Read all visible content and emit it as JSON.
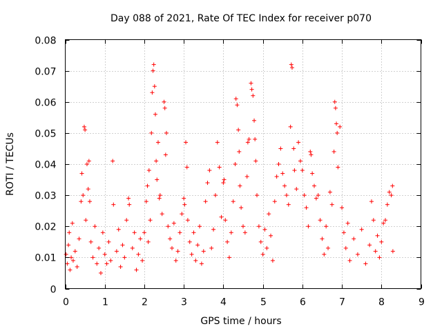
{
  "chart_data": {
    "type": "scatter",
    "title": "Day 088 of 2021, Rate Of TEC Index for receiver p070",
    "xlabel": "GPS time / hours",
    "ylabel": "ROTI / TECUs",
    "xlim": [
      0,
      9
    ],
    "ylim": [
      0,
      0.08
    ],
    "grid": true,
    "marker": "+",
    "color": "#ff0000",
    "x_ticks": [
      {
        "v": 0,
        "label": "0"
      },
      {
        "v": 1,
        "label": "1"
      },
      {
        "v": 2,
        "label": "2"
      },
      {
        "v": 3,
        "label": "3"
      },
      {
        "v": 4,
        "label": "4"
      },
      {
        "v": 5,
        "label": "5"
      },
      {
        "v": 6,
        "label": "6"
      },
      {
        "v": 7,
        "label": "7"
      },
      {
        "v": 8,
        "label": "8"
      },
      {
        "v": 9,
        "label": "9"
      }
    ],
    "y_ticks": [
      {
        "v": 0,
        "label": "0"
      },
      {
        "v": 0.01,
        "label": "0.01"
      },
      {
        "v": 0.02,
        "label": "0.02"
      },
      {
        "v": 0.03,
        "label": "0.03"
      },
      {
        "v": 0.04,
        "label": "0.04"
      },
      {
        "v": 0.05,
        "label": "0.05"
      },
      {
        "v": 0.06,
        "label": "0.06"
      },
      {
        "v": 0.07,
        "label": "0.07"
      },
      {
        "v": 0.08,
        "label": "0.08"
      }
    ],
    "points": [
      [
        0.02,
        0.011
      ],
      [
        0.05,
        0.008
      ],
      [
        0.08,
        0.014
      ],
      [
        0.1,
        0.018
      ],
      [
        0.12,
        0.006
      ],
      [
        0.15,
        0.01
      ],
      [
        0.18,
        0.021
      ],
      [
        0.2,
        0.009
      ],
      [
        0.25,
        0.012
      ],
      [
        0.3,
        0.007
      ],
      [
        0.35,
        0.016
      ],
      [
        0.4,
        0.028
      ],
      [
        0.42,
        0.037
      ],
      [
        0.45,
        0.03
      ],
      [
        0.48,
        0.052
      ],
      [
        0.5,
        0.051
      ],
      [
        0.52,
        0.022
      ],
      [
        0.55,
        0.04
      ],
      [
        0.58,
        0.032
      ],
      [
        0.6,
        0.041
      ],
      [
        0.62,
        0.028
      ],
      [
        0.65,
        0.015
      ],
      [
        0.7,
        0.01
      ],
      [
        0.75,
        0.02
      ],
      [
        0.8,
        0.008
      ],
      [
        0.85,
        0.013
      ],
      [
        0.9,
        0.005
      ],
      [
        0.95,
        0.018
      ],
      [
        1.0,
        0.011
      ],
      [
        1.05,
        0.008
      ],
      [
        1.1,
        0.015
      ],
      [
        1.15,
        0.009
      ],
      [
        1.2,
        0.041
      ],
      [
        1.22,
        0.027
      ],
      [
        1.3,
        0.012
      ],
      [
        1.35,
        0.019
      ],
      [
        1.4,
        0.007
      ],
      [
        1.45,
        0.014
      ],
      [
        1.5,
        0.01
      ],
      [
        1.55,
        0.022
      ],
      [
        1.6,
        0.029
      ],
      [
        1.62,
        0.027
      ],
      [
        1.7,
        0.013
      ],
      [
        1.75,
        0.018
      ],
      [
        1.8,
        0.006
      ],
      [
        1.85,
        0.011
      ],
      [
        1.9,
        0.016
      ],
      [
        1.95,
        0.009
      ],
      [
        2.0,
        0.018
      ],
      [
        2.05,
        0.028
      ],
      [
        2.08,
        0.033
      ],
      [
        2.1,
        0.015
      ],
      [
        2.12,
        0.038
      ],
      [
        2.15,
        0.022
      ],
      [
        2.18,
        0.05
      ],
      [
        2.2,
        0.063
      ],
      [
        2.22,
        0.07
      ],
      [
        2.24,
        0.072
      ],
      [
        2.26,
        0.065
      ],
      [
        2.28,
        0.056
      ],
      [
        2.3,
        0.041
      ],
      [
        2.32,
        0.035
      ],
      [
        2.35,
        0.047
      ],
      [
        2.38,
        0.029
      ],
      [
        2.4,
        0.03
      ],
      [
        2.45,
        0.024
      ],
      [
        2.5,
        0.06
      ],
      [
        2.52,
        0.058
      ],
      [
        2.54,
        0.043
      ],
      [
        2.56,
        0.05
      ],
      [
        2.6,
        0.02
      ],
      [
        2.65,
        0.016
      ],
      [
        2.7,
        0.013
      ],
      [
        2.75,
        0.021
      ],
      [
        2.8,
        0.009
      ],
      [
        2.85,
        0.012
      ],
      [
        2.9,
        0.018
      ],
      [
        2.95,
        0.024
      ],
      [
        3.0,
        0.029
      ],
      [
        3.02,
        0.027
      ],
      [
        3.05,
        0.047
      ],
      [
        3.08,
        0.039
      ],
      [
        3.1,
        0.022
      ],
      [
        3.15,
        0.015
      ],
      [
        3.2,
        0.011
      ],
      [
        3.25,
        0.018
      ],
      [
        3.3,
        0.009
      ],
      [
        3.35,
        0.014
      ],
      [
        3.4,
        0.02
      ],
      [
        3.45,
        0.008
      ],
      [
        3.5,
        0.012
      ],
      [
        3.55,
        0.028
      ],
      [
        3.6,
        0.034
      ],
      [
        3.65,
        0.038
      ],
      [
        3.7,
        0.013
      ],
      [
        3.75,
        0.019
      ],
      [
        3.8,
        0.03
      ],
      [
        3.85,
        0.047
      ],
      [
        3.9,
        0.039
      ],
      [
        3.95,
        0.023
      ],
      [
        4.0,
        0.034
      ],
      [
        4.02,
        0.035
      ],
      [
        4.05,
        0.022
      ],
      [
        4.1,
        0.015
      ],
      [
        4.15,
        0.01
      ],
      [
        4.2,
        0.018
      ],
      [
        4.25,
        0.028
      ],
      [
        4.3,
        0.04
      ],
      [
        4.32,
        0.061
      ],
      [
        4.35,
        0.059
      ],
      [
        4.38,
        0.051
      ],
      [
        4.4,
        0.044
      ],
      [
        4.42,
        0.033
      ],
      [
        4.45,
        0.026
      ],
      [
        4.5,
        0.02
      ],
      [
        4.55,
        0.018
      ],
      [
        4.6,
        0.036
      ],
      [
        4.62,
        0.047
      ],
      [
        4.65,
        0.048
      ],
      [
        4.7,
        0.066
      ],
      [
        4.72,
        0.064
      ],
      [
        4.75,
        0.062
      ],
      [
        4.78,
        0.054
      ],
      [
        4.8,
        0.048
      ],
      [
        4.82,
        0.041
      ],
      [
        4.85,
        0.03
      ],
      [
        4.9,
        0.02
      ],
      [
        4.95,
        0.015
      ],
      [
        5.0,
        0.011
      ],
      [
        5.05,
        0.019
      ],
      [
        5.1,
        0.013
      ],
      [
        5.15,
        0.024
      ],
      [
        5.2,
        0.017
      ],
      [
        5.25,
        0.009
      ],
      [
        5.3,
        0.028
      ],
      [
        5.35,
        0.036
      ],
      [
        5.4,
        0.04
      ],
      [
        5.45,
        0.045
      ],
      [
        5.5,
        0.037
      ],
      [
        5.55,
        0.033
      ],
      [
        5.6,
        0.03
      ],
      [
        5.65,
        0.027
      ],
      [
        5.7,
        0.052
      ],
      [
        5.72,
        0.072
      ],
      [
        5.74,
        0.071
      ],
      [
        5.78,
        0.045
      ],
      [
        5.8,
        0.038
      ],
      [
        5.85,
        0.032
      ],
      [
        5.9,
        0.047
      ],
      [
        5.95,
        0.041
      ],
      [
        6.0,
        0.038
      ],
      [
        6.05,
        0.03
      ],
      [
        6.1,
        0.026
      ],
      [
        6.15,
        0.02
      ],
      [
        6.2,
        0.044
      ],
      [
        6.22,
        0.043
      ],
      [
        6.25,
        0.037
      ],
      [
        6.3,
        0.033
      ],
      [
        6.35,
        0.029
      ],
      [
        6.4,
        0.03
      ],
      [
        6.45,
        0.022
      ],
      [
        6.5,
        0.016
      ],
      [
        6.55,
        0.011
      ],
      [
        6.6,
        0.02
      ],
      [
        6.65,
        0.013
      ],
      [
        6.7,
        0.031
      ],
      [
        6.75,
        0.027
      ],
      [
        6.8,
        0.044
      ],
      [
        6.82,
        0.06
      ],
      [
        6.84,
        0.058
      ],
      [
        6.86,
        0.053
      ],
      [
        6.88,
        0.05
      ],
      [
        6.9,
        0.039
      ],
      [
        6.95,
        0.052
      ],
      [
        7.0,
        0.026
      ],
      [
        7.05,
        0.018
      ],
      [
        7.1,
        0.013
      ],
      [
        7.15,
        0.021
      ],
      [
        7.2,
        0.009
      ],
      [
        7.3,
        0.016
      ],
      [
        7.4,
        0.011
      ],
      [
        7.5,
        0.019
      ],
      [
        7.6,
        0.008
      ],
      [
        7.7,
        0.014
      ],
      [
        7.75,
        0.028
      ],
      [
        7.8,
        0.022
      ],
      [
        7.85,
        0.012
      ],
      [
        7.9,
        0.017
      ],
      [
        7.95,
        0.01
      ],
      [
        8.0,
        0.015
      ],
      [
        8.05,
        0.021
      ],
      [
        8.1,
        0.022
      ],
      [
        8.15,
        0.027
      ],
      [
        8.2,
        0.031
      ],
      [
        8.25,
        0.03
      ],
      [
        8.28,
        0.033
      ],
      [
        8.29,
        0.012
      ]
    ]
  }
}
